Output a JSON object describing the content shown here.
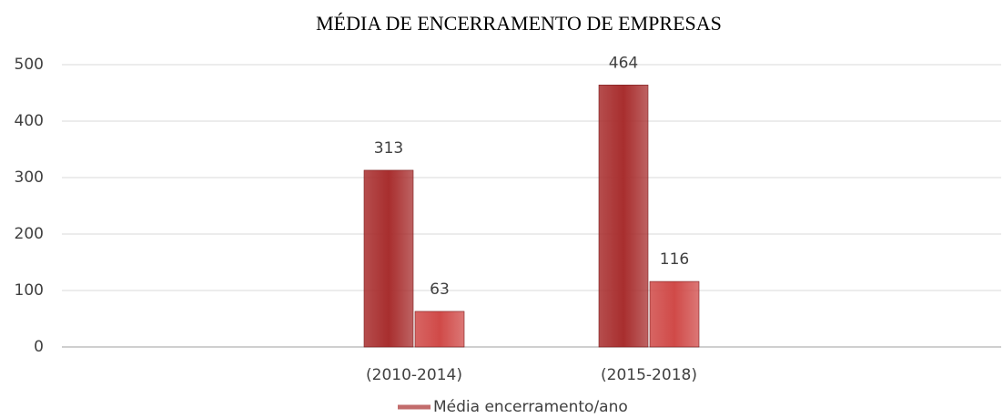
{
  "chart_data": {
    "type": "bar",
    "title": "MÉDIA DE ENCERRAMENTO DE EMPRESAS",
    "categories": [
      null,
      "(2010-2014)",
      "(2015-2018)",
      null
    ],
    "series": [
      {
        "name": "Média encerramento/ano",
        "color": "#a82e2e",
        "values": [
          null,
          313,
          464,
          null
        ]
      },
      {
        "color": "#d04a48",
        "values": [
          null,
          63,
          116,
          null
        ]
      }
    ],
    "ylim": [
      0,
      500
    ],
    "yticks": [
      0,
      100,
      200,
      300,
      400,
      500
    ],
    "grid": true,
    "legend": "bottom"
  }
}
